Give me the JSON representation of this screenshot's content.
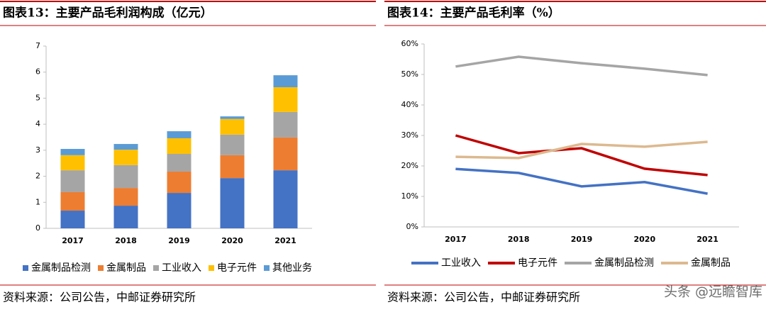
{
  "chart_data": [
    {
      "type": "stacked_bar",
      "title": "图表13：主要产品毛利润构成（亿元）",
      "source": "资料来源：公司公告，中邮证券研究所",
      "categories": [
        "2017",
        "2018",
        "2019",
        "2020",
        "2021"
      ],
      "ylim": [
        0,
        7
      ],
      "yticks": [
        0,
        1,
        2,
        3,
        4,
        5,
        6,
        7
      ],
      "series": [
        {
          "name": "金属制品检测",
          "color": "#4472c4",
          "values": [
            0.68,
            0.87,
            1.36,
            1.93,
            2.23
          ]
        },
        {
          "name": "金属制品",
          "color": "#ed7d31",
          "values": [
            0.71,
            0.68,
            0.82,
            0.88,
            1.26
          ]
        },
        {
          "name": "工业收入",
          "color": "#a5a5a5",
          "values": [
            0.84,
            0.88,
            0.68,
            0.79,
            0.98
          ]
        },
        {
          "name": "电子元件",
          "color": "#ffc000",
          "values": [
            0.58,
            0.59,
            0.6,
            0.6,
            0.95
          ]
        },
        {
          "name": "其他业务",
          "color": "#5b9bd5",
          "values": [
            0.24,
            0.22,
            0.27,
            0.1,
            0.46
          ]
        }
      ]
    },
    {
      "type": "line",
      "title": "图表14：主要产品毛利率（%）",
      "source": "资料来源：公司公告，中邮证券研究所",
      "categories": [
        "2017",
        "2018",
        "2019",
        "2020",
        "2021"
      ],
      "ylim": [
        0,
        60
      ],
      "yticks": [
        {
          "value": 0,
          "label": "0%"
        },
        {
          "value": 10,
          "label": "10%"
        },
        {
          "value": 20,
          "label": "20%"
        },
        {
          "value": 30,
          "label": "30%"
        },
        {
          "value": 40,
          "label": "40%"
        },
        {
          "value": 50,
          "label": "50%"
        },
        {
          "value": 60,
          "label": "60%"
        }
      ],
      "series": [
        {
          "name": "工业收入",
          "color": "#4472c4",
          "values": [
            19.0,
            17.7,
            13.3,
            14.7,
            10.9
          ]
        },
        {
          "name": "电子元件",
          "color": "#c00000",
          "values": [
            30.0,
            24.2,
            25.8,
            19.1,
            17.0
          ]
        },
        {
          "name": "金属制品检测",
          "color": "#a5a5a5",
          "values": [
            52.6,
            55.8,
            53.7,
            51.9,
            49.8
          ]
        },
        {
          "name": "金属制品",
          "color": "#dcb98f",
          "values": [
            23.0,
            22.6,
            27.2,
            26.3,
            27.9
          ]
        }
      ]
    }
  ],
  "watermark": "头条 @远瞻智库"
}
